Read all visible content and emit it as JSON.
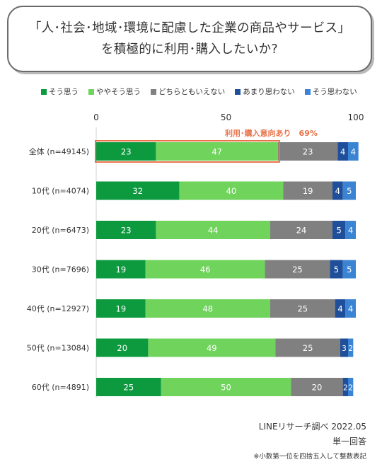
{
  "title": {
    "line1": "「人･社会･地域･環境に配慮した企業の商品やサービス」",
    "line2": "を積極的に利用･購入したいか?"
  },
  "annotation": "利用･購入意向あり　69%",
  "footer": {
    "source": "LINEリサーチ調べ 2022.05",
    "answer": "単一回答",
    "note": "※小数第一位を四捨五入して整数表記"
  },
  "chart_data": {
    "type": "bar",
    "orientation": "horizontal",
    "stacked": true,
    "xlim": [
      0,
      100
    ],
    "x_ticks": [
      "0",
      "50",
      "100"
    ],
    "grid": false,
    "legend_position": "top",
    "categories": [
      "全体 (n=49145)",
      "10代 (n=4074)",
      "20代 (n=6473)",
      "30代 (n=7696)",
      "40代 (n=12927)",
      "50代 (n=13084)",
      "60代 (n=4891)"
    ],
    "series": [
      {
        "name": "そう思う",
        "color": "#0d9a3f",
        "values": [
          23,
          32,
          23,
          19,
          19,
          20,
          25
        ]
      },
      {
        "name": "ややそう思う",
        "color": "#6fd35c",
        "values": [
          47,
          40,
          44,
          46,
          48,
          49,
          50
        ]
      },
      {
        "name": "どちらともいえない",
        "color": "#808080",
        "values": [
          23,
          19,
          24,
          25,
          25,
          25,
          20
        ]
      },
      {
        "name": "あまり思わない",
        "color": "#1f4f9a",
        "values": [
          4,
          4,
          5,
          5,
          4,
          3,
          2
        ]
      },
      {
        "name": "そう思わない",
        "color": "#3a84d3",
        "values": [
          4,
          5,
          4,
          5,
          4,
          2,
          2
        ]
      }
    ],
    "highlight_color": "#e8734a"
  }
}
